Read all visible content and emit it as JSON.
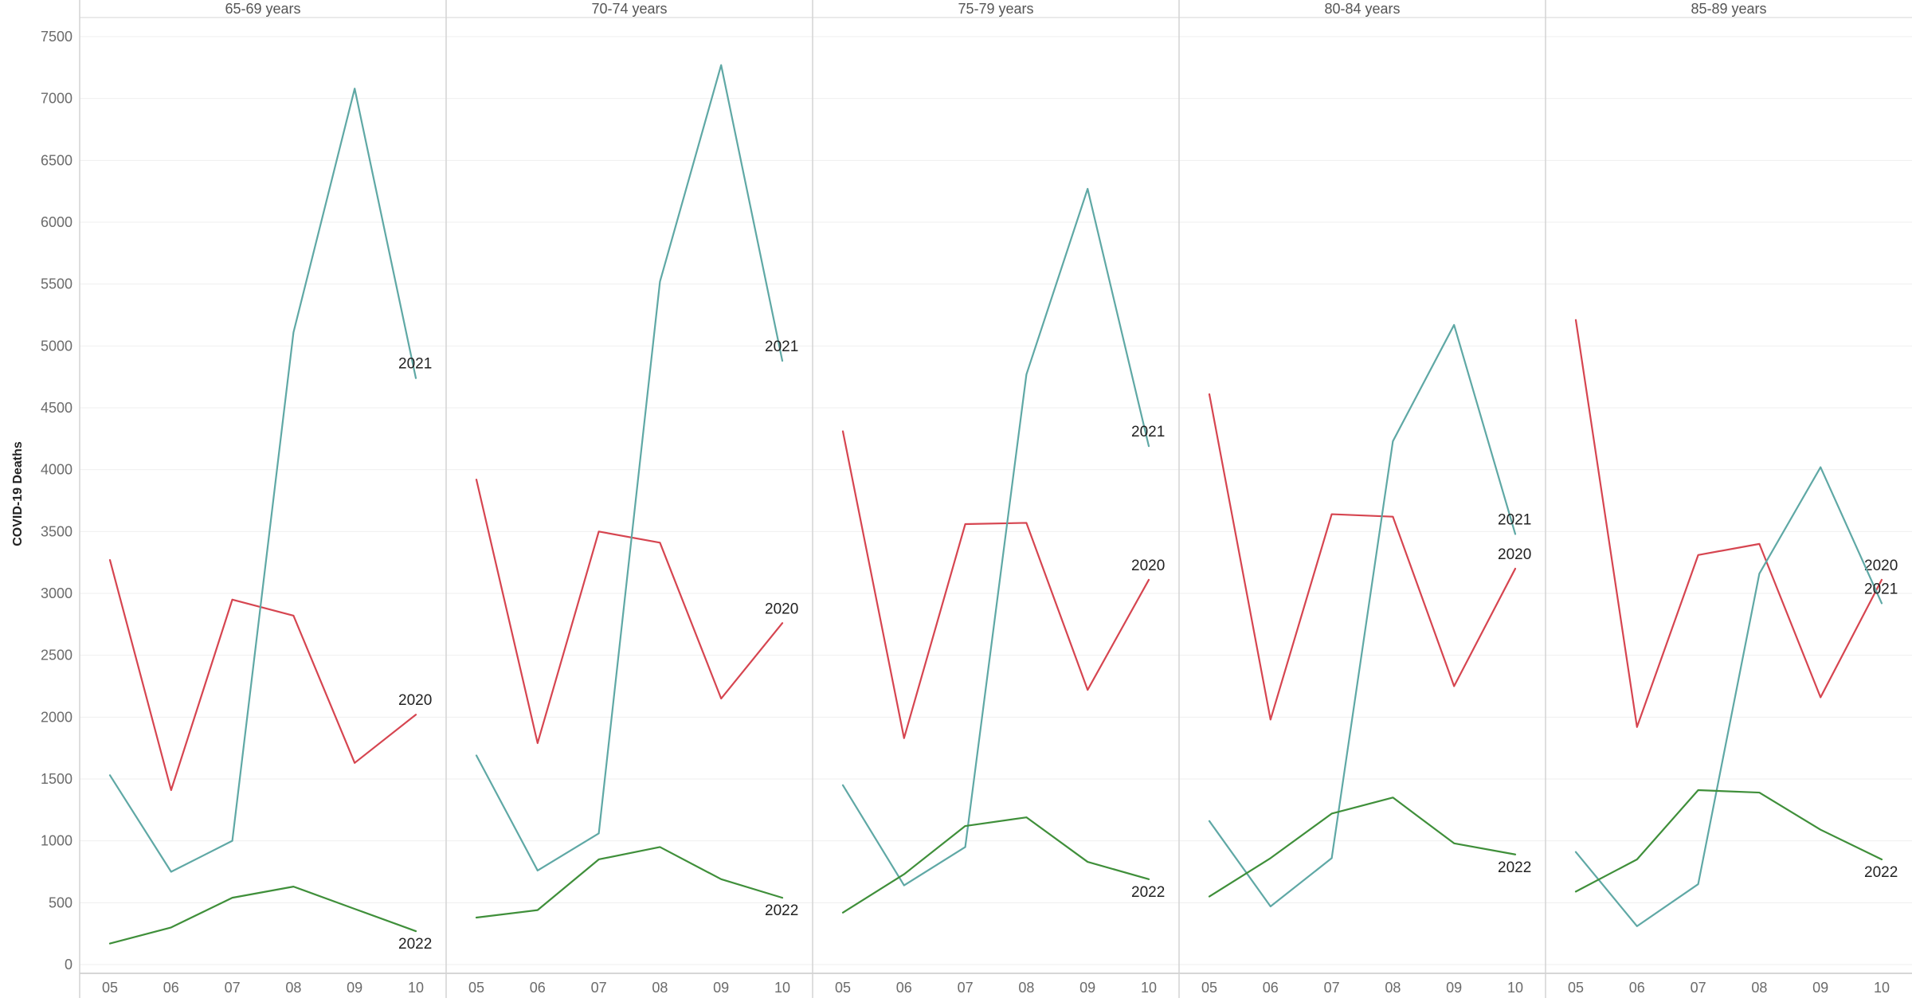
{
  "chart_data": {
    "type": "line",
    "ylabel": "COVID-19 Deaths",
    "ylim": [
      0,
      7500
    ],
    "yticks": [
      0,
      500,
      1000,
      1500,
      2000,
      2500,
      3000,
      3500,
      4000,
      4500,
      5000,
      5500,
      6000,
      6500,
      7000,
      7500
    ],
    "x": [
      "05",
      "06",
      "07",
      "08",
      "09",
      "10"
    ],
    "series_colors": {
      "2020": "#d64550",
      "2021": "#5fa8a5",
      "2022": "#3f8f3a"
    },
    "panels": [
      {
        "title": "65-69 years",
        "series": [
          {
            "name": "2020",
            "values": [
              3270,
              1410,
              2950,
              2820,
              1630,
              2020
            ]
          },
          {
            "name": "2021",
            "values": [
              1530,
              750,
              1000,
              5110,
              7080,
              4740
            ]
          },
          {
            "name": "2022",
            "values": [
              170,
              300,
              540,
              630,
              450,
              270
            ]
          }
        ]
      },
      {
        "title": "70-74 years",
        "series": [
          {
            "name": "2020",
            "values": [
              3920,
              1790,
              3500,
              3410,
              2150,
              2760
            ]
          },
          {
            "name": "2021",
            "values": [
              1690,
              760,
              1060,
              5520,
              7270,
              4880
            ]
          },
          {
            "name": "2022",
            "values": [
              380,
              440,
              850,
              950,
              690,
              540
            ]
          }
        ]
      },
      {
        "title": "75-79 years",
        "series": [
          {
            "name": "2020",
            "values": [
              4310,
              1830,
              3560,
              3570,
              2220,
              3110
            ]
          },
          {
            "name": "2021",
            "values": [
              1450,
              640,
              950,
              4770,
              6270,
              4190
            ]
          },
          {
            "name": "2022",
            "values": [
              420,
              730,
              1120,
              1190,
              830,
              690
            ]
          }
        ]
      },
      {
        "title": "80-84 years",
        "series": [
          {
            "name": "2020",
            "values": [
              4610,
              1980,
              3640,
              3620,
              2250,
              3200
            ]
          },
          {
            "name": "2021",
            "values": [
              1160,
              470,
              860,
              4230,
              5170,
              3480
            ]
          },
          {
            "name": "2022",
            "values": [
              550,
              860,
              1220,
              1350,
              980,
              890
            ]
          }
        ]
      },
      {
        "title": "85-89 years",
        "series": [
          {
            "name": "2020",
            "values": [
              5210,
              1920,
              3310,
              3400,
              2160,
              3110
            ]
          },
          {
            "name": "2021",
            "values": [
              910,
              310,
              650,
              3160,
              4020,
              2920
            ]
          },
          {
            "name": "2022",
            "values": [
              590,
              850,
              1410,
              1390,
              1090,
              850
            ]
          }
        ]
      }
    ]
  }
}
